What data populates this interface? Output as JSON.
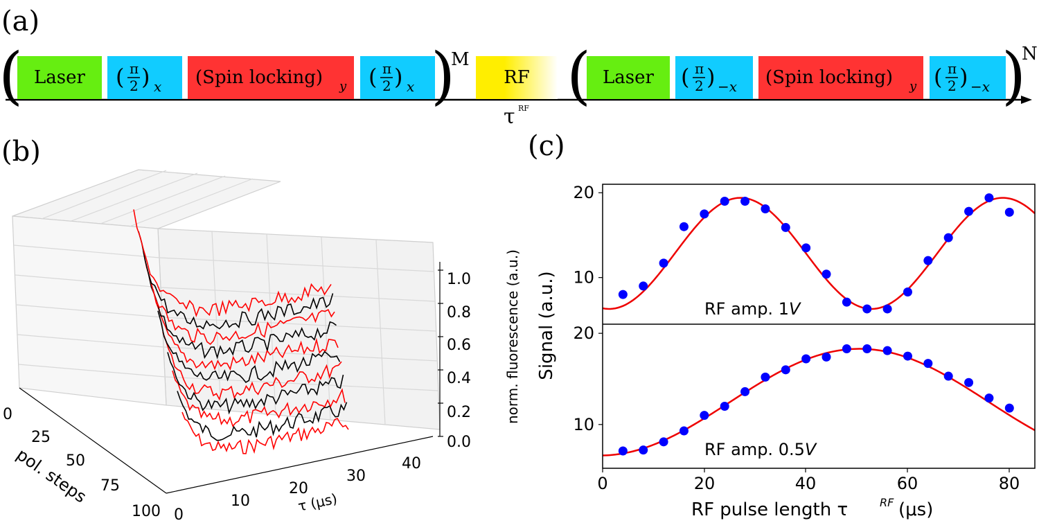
{
  "panel_a": {
    "label": "(a)",
    "blocks_left": [
      {
        "text": "Laser",
        "color": "#66ee11"
      },
      {
        "text": "(π/2)",
        "sub": "x",
        "color": "#11ccff"
      },
      {
        "text": "(Spin locking)",
        "sub": "y",
        "color": "#ff3333"
      },
      {
        "text": "(π/2)",
        "sub": "x",
        "color": "#11ccff"
      }
    ],
    "exponent_left": "M",
    "rf_block": {
      "text": "RF",
      "color_start": "#ffee00",
      "color_end": "#ffffff"
    },
    "rf_time_label": "τ",
    "rf_time_superscript": "RF",
    "blocks_right": [
      {
        "text": "Laser",
        "color": "#66ee11"
      },
      {
        "text": "(π/2)",
        "sub": "−x",
        "color": "#11ccff"
      },
      {
        "text": "(Spin locking)",
        "sub": "y",
        "color": "#ff3333"
      },
      {
        "text": "(π/2)",
        "sub": "−x",
        "color": "#11ccff"
      }
    ],
    "exponent_right": "N"
  },
  "panel_b": {
    "label": "(b)",
    "x_ticks": [
      "0",
      "25",
      "50",
      "75",
      "100"
    ],
    "x_label": "pol. steps",
    "tau_ticks": [
      "0",
      "10",
      "20",
      "30",
      "40"
    ],
    "tau_label": "τ (μs)",
    "z_ticks": [
      "0.0",
      "0.2",
      "0.4",
      "0.6",
      "0.8",
      "1.0"
    ],
    "z_label": "norm. fluorescence (a.u.)",
    "trace_colors": [
      "#ff0000",
      "#000000"
    ]
  },
  "panel_c": {
    "label": "(c)",
    "y_label": "Signal (a.u.)",
    "x_label": "RF pulse length τ",
    "x_label_sup": "RF",
    "x_label_unit": " (μs)",
    "x_ticks": [
      "0",
      "20",
      "40",
      "60",
      "80"
    ]
  },
  "chart_data": [
    {
      "type": "scatter",
      "title": "RF amp. 1V",
      "annotation": "RF amp. 1",
      "annotation_unit": "V",
      "xlabel": "RF pulse length τRF (μs)",
      "ylabel": "Signal (a.u.)",
      "xlim": [
        0,
        85
      ],
      "ylim": [
        4.5,
        21
      ],
      "yticks": [
        10,
        20
      ],
      "marker_color": "#0000ff",
      "fit_color": "#ee0000",
      "series": [
        {
          "name": "data",
          "x": [
            4,
            8,
            12,
            16,
            20,
            24,
            28,
            32,
            36,
            40,
            44,
            48,
            52,
            56,
            60,
            64,
            68,
            72,
            76,
            80
          ],
          "y": [
            8.0,
            9.0,
            11.7,
            16.0,
            17.5,
            19.0,
            19.0,
            18.1,
            15.9,
            13.5,
            10.4,
            7.1,
            6.3,
            6.3,
            8.3,
            12.0,
            14.7,
            17.8,
            19.4,
            17.7
          ]
        },
        {
          "name": "fit",
          "model": "sine",
          "offset": 12.85,
          "amplitude": 6.55,
          "period": 51.6,
          "x_max": 27.1
        }
      ]
    },
    {
      "type": "scatter",
      "title": "RF amp. 0.5V",
      "annotation": "RF amp. 0.5",
      "annotation_unit": "V",
      "xlabel": "RF pulse length τRF (μs)",
      "ylabel": "Signal (a.u.)",
      "xlim": [
        0,
        85
      ],
      "ylim": [
        5.2,
        21
      ],
      "yticks": [
        10,
        20
      ],
      "marker_color": "#0000ff",
      "fit_color": "#ee0000",
      "series": [
        {
          "name": "data",
          "x": [
            4,
            8,
            12,
            16,
            20,
            24,
            28,
            32,
            36,
            40,
            44,
            48,
            52,
            56,
            60,
            64,
            68,
            72,
            76,
            80
          ],
          "y": [
            7.1,
            7.2,
            8.1,
            9.3,
            11.0,
            12.0,
            13.6,
            15.2,
            16.0,
            17.2,
            17.4,
            18.3,
            18.3,
            18.1,
            17.5,
            16.7,
            15.3,
            14.6,
            12.9,
            11.8
          ]
        },
        {
          "name": "fit",
          "model": "sine",
          "offset": 12.45,
          "amplitude": 5.85,
          "period": 102,
          "x_max": 50.5
        }
      ]
    }
  ]
}
